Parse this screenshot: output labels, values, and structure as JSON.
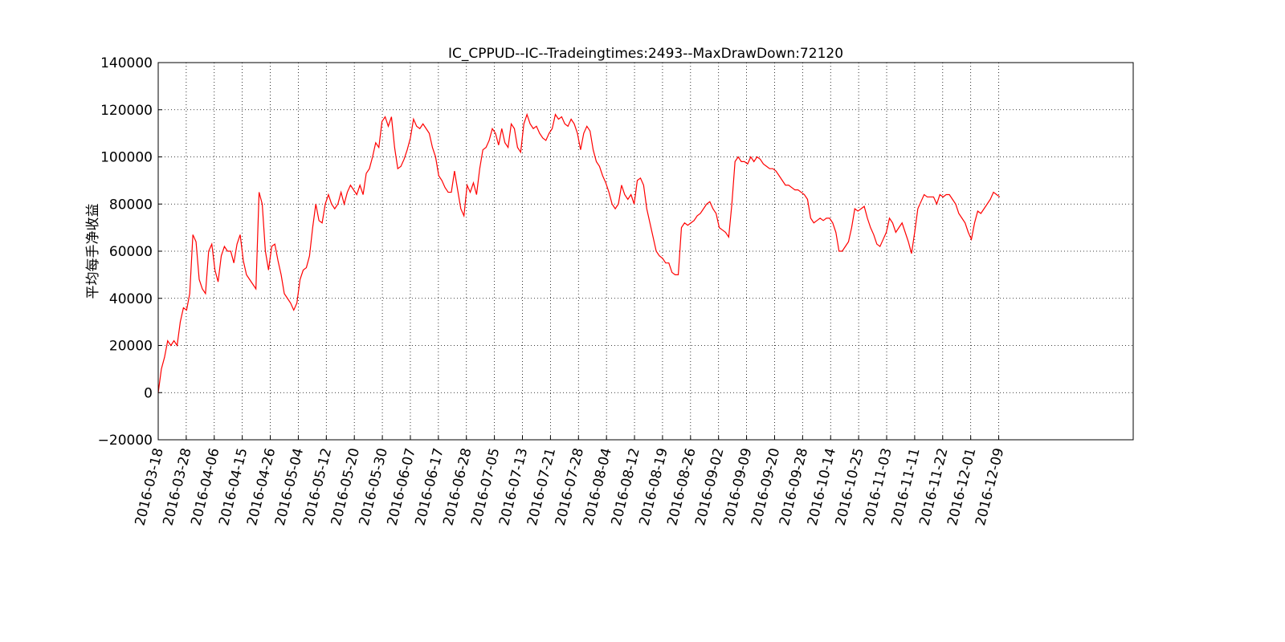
{
  "chart_data": {
    "type": "line",
    "title": "IC_CPPUD--IC--Tradeingtimes:2493--MaxDrawDown:72120",
    "y_label": "平均每手净收益",
    "grid": true,
    "xlim": [
      0,
      3480
    ],
    "ylim": [
      -20000,
      140000
    ],
    "yticks": [
      {
        "value": -20000,
        "label": "−20000"
      },
      0,
      20000,
      40000,
      60000,
      80000,
      100000,
      120000,
      140000
    ],
    "xticks": [
      {
        "value": 0,
        "label": "2016-03-18"
      },
      {
        "value": 100,
        "label": "2016-03-28"
      },
      {
        "value": 200,
        "label": "2016-04-06"
      },
      {
        "value": 300,
        "label": "2016-04-15"
      },
      {
        "value": 400,
        "label": "2016-04-26"
      },
      {
        "value": 500,
        "label": "2016-05-04"
      },
      {
        "value": 600,
        "label": "2016-05-12"
      },
      {
        "value": 700,
        "label": "2016-05-20"
      },
      {
        "value": 800,
        "label": "2016-05-30"
      },
      {
        "value": 900,
        "label": "2016-06-07"
      },
      {
        "value": 1000,
        "label": "2016-06-17"
      },
      {
        "value": 1100,
        "label": "2016-06-28"
      },
      {
        "value": 1200,
        "label": "2016-07-05"
      },
      {
        "value": 1300,
        "label": "2016-07-13"
      },
      {
        "value": 1400,
        "label": "2016-07-21"
      },
      {
        "value": 1500,
        "label": "2016-07-28"
      },
      {
        "value": 1600,
        "label": "2016-08-04"
      },
      {
        "value": 1700,
        "label": "2016-08-12"
      },
      {
        "value": 1800,
        "label": "2016-08-19"
      },
      {
        "value": 1900,
        "label": "2016-08-26"
      },
      {
        "value": 2000,
        "label": "2016-09-02"
      },
      {
        "value": 2100,
        "label": "2016-09-09"
      },
      {
        "value": 2200,
        "label": "2016-09-20"
      },
      {
        "value": 2300,
        "label": "2016-09-28"
      },
      {
        "value": 2400,
        "label": "2016-10-14"
      },
      {
        "value": 2500,
        "label": "2016-10-25"
      },
      {
        "value": 2600,
        "label": "2016-11-03"
      },
      {
        "value": 2700,
        "label": "2016-11-11"
      },
      {
        "value": 2800,
        "label": "2016-11-22"
      },
      {
        "value": 2900,
        "label": "2016-12-01"
      },
      {
        "value": 3000,
        "label": "2016-12-09"
      }
    ],
    "x": [
      0,
      11.25,
      22.5,
      33.75,
      45,
      56.25,
      67.5,
      78.75,
      90,
      101.25,
      112.5,
      123.75,
      135,
      146.25,
      157.5,
      168.75,
      180,
      191.25,
      202.5,
      213.75,
      225,
      236.25,
      247.5,
      258.75,
      270,
      281.25,
      292.5,
      303.75,
      315,
      326.25,
      337.5,
      348.75,
      360,
      371.25,
      382.5,
      393.75,
      405,
      416.25,
      427.5,
      438.75,
      450,
      461.25,
      472.5,
      483.75,
      495,
      506.25,
      517.5,
      528.75,
      540,
      551.25,
      562.5,
      573.75,
      585,
      596.25,
      607.5,
      618.75,
      630,
      641.25,
      652.5,
      663.75,
      675,
      686.25,
      697.5,
      708.75,
      720,
      731.25,
      742.5,
      753.75,
      765,
      776.25,
      787.5,
      798.75,
      810,
      821.25,
      832.5,
      843.75,
      855,
      866.25,
      877.5,
      888.75,
      900,
      911.25,
      922.5,
      933.75,
      945,
      956.25,
      967.5,
      978.75,
      990,
      1001.25,
      1012.5,
      1023.75,
      1035,
      1046.25,
      1057.5,
      1068.75,
      1080,
      1091.25,
      1102.5,
      1113.75,
      1125,
      1136.25,
      1147.5,
      1158.75,
      1170,
      1181.25,
      1192.5,
      1203.75,
      1215,
      1226.25,
      1237.5,
      1248.75,
      1260,
      1271.25,
      1282.5,
      1293.75,
      1305,
      1316.25,
      1327.5,
      1338.75,
      1350,
      1361.25,
      1372.5,
      1383.75,
      1395,
      1406.25,
      1417.5,
      1428.75,
      1440,
      1451.25,
      1462.5,
      1473.75,
      1485,
      1496.25,
      1507.5,
      1518.75,
      1530,
      1541.25,
      1552.5,
      1563.75,
      1575,
      1586.25,
      1597.5,
      1608.75,
      1620,
      1631.25,
      1642.5,
      1653.75,
      1665,
      1676.25,
      1687.5,
      1698.75,
      1710,
      1721.25,
      1732.5,
      1743.75,
      1755,
      1766.25,
      1777.5,
      1788.75,
      1800,
      1811.25,
      1822.5,
      1833.75,
      1845,
      1856.25,
      1867.5,
      1878.75,
      1890,
      1901.25,
      1912.5,
      1923.75,
      1935,
      1946.25,
      1957.5,
      1968.75,
      1980,
      1991.25,
      2002.5,
      2013.75,
      2025,
      2036.25,
      2047.5,
      2058.75,
      2070,
      2081.25,
      2092.5,
      2103.75,
      2115,
      2126.25,
      2137.5,
      2148.75,
      2160,
      2171.25,
      2182.5,
      2193.75,
      2205,
      2216.25,
      2227.5,
      2238.75,
      2250,
      2261.25,
      2272.5,
      2283.75,
      2295,
      2306.25,
      2317.5,
      2328.75,
      2340,
      2351.25,
      2362.5,
      2373.75,
      2385,
      2396.25,
      2407.5,
      2418.75,
      2430,
      2441.25,
      2452.5,
      2463.75,
      2475,
      2486.25,
      2497.5,
      2508.75,
      2520,
      2531.25,
      2542.5,
      2553.75,
      2565,
      2576.25,
      2587.5,
      2598.75,
      2610,
      2621.25,
      2632.5,
      2643.75,
      2655,
      2666.25,
      2677.5,
      2688.75,
      2700,
      2711.25,
      2722.5,
      2733.75,
      2745,
      2756.25,
      2767.5,
      2778.75,
      2790,
      2801.25,
      2812.5,
      2823.75,
      2835,
      2846.25,
      2857.5,
      2868.75,
      2880,
      2891.25,
      2902.5,
      2913.75,
      2925,
      2936.25,
      2947.5,
      2958.75,
      2970,
      2981.25,
      2992.5,
      3003.75
    ],
    "series": [
      {
        "color": "#ff0000",
        "values": [
          0,
          10000,
          15000,
          22000,
          20000,
          22000,
          20000,
          30000,
          36000,
          35000,
          42000,
          67000,
          64000,
          48000,
          44000,
          42000,
          60000,
          63000,
          52000,
          47000,
          58000,
          62000,
          60000,
          60000,
          55000,
          63000,
          67000,
          56000,
          50000,
          48000,
          46000,
          44000,
          85000,
          80000,
          60000,
          52000,
          62000,
          63000,
          56000,
          50000,
          42000,
          40000,
          38000,
          35000,
          38000,
          48000,
          52000,
          53000,
          58000,
          70000,
          80000,
          73000,
          72000,
          80000,
          84000,
          80000,
          78000,
          80000,
          85000,
          80000,
          85000,
          88000,
          86000,
          84000,
          88000,
          84000,
          93000,
          95000,
          100000,
          106000,
          104000,
          115000,
          117000,
          113000,
          117000,
          104000,
          95000,
          96000,
          99000,
          103000,
          108000,
          116000,
          113000,
          112000,
          114000,
          112000,
          110000,
          104000,
          100000,
          92000,
          90000,
          87000,
          85000,
          85000,
          94000,
          86000,
          78000,
          75000,
          88000,
          85000,
          89000,
          84000,
          95000,
          103000,
          104000,
          107000,
          112000,
          110000,
          105000,
          112000,
          106000,
          104000,
          114000,
          112000,
          104000,
          102000,
          114000,
          118000,
          114000,
          112000,
          113000,
          110000,
          108000,
          107000,
          110000,
          112000,
          118000,
          116000,
          117000,
          114000,
          113000,
          116000,
          114000,
          110000,
          103000,
          110000,
          113000,
          111000,
          103000,
          98000,
          96000,
          92000,
          89000,
          85000,
          80000,
          78000,
          80000,
          88000,
          84000,
          82000,
          84000,
          80000,
          90000,
          91000,
          88000,
          78000,
          72000,
          66000,
          60000,
          58000,
          57000,
          55000,
          55000,
          51000,
          50000,
          50000,
          70000,
          72000,
          71000,
          72000,
          73000,
          75000,
          76000,
          78000,
          80000,
          81000,
          78000,
          76000,
          70000,
          69000,
          68000,
          66000,
          80000,
          98000,
          100000,
          98000,
          98000,
          97000,
          100000,
          98000,
          100000,
          99000,
          97000,
          96000,
          95000,
          95000,
          94000,
          92000,
          90000,
          88000,
          88000,
          87000,
          86000,
          86000,
          85000,
          84000,
          82000,
          74000,
          72000,
          73000,
          74000,
          73000,
          74000,
          74000,
          72000,
          68000,
          60000,
          60000,
          62000,
          64000,
          70000,
          78000,
          77000,
          78000,
          79000,
          74000,
          70000,
          67000,
          63000,
          62000,
          65000,
          68000,
          74000,
          72000,
          68000,
          70000,
          72000,
          68000,
          64000,
          59000,
          68000,
          78000,
          81000,
          84000,
          83000,
          83000,
          83000,
          80000,
          84000,
          83000,
          84000,
          84000,
          82000,
          80000,
          76000,
          74000,
          72000,
          68000,
          65000,
          72000,
          77000,
          76000,
          78000,
          80000,
          82000,
          85000,
          84000,
          83000
        ]
      }
    ]
  }
}
